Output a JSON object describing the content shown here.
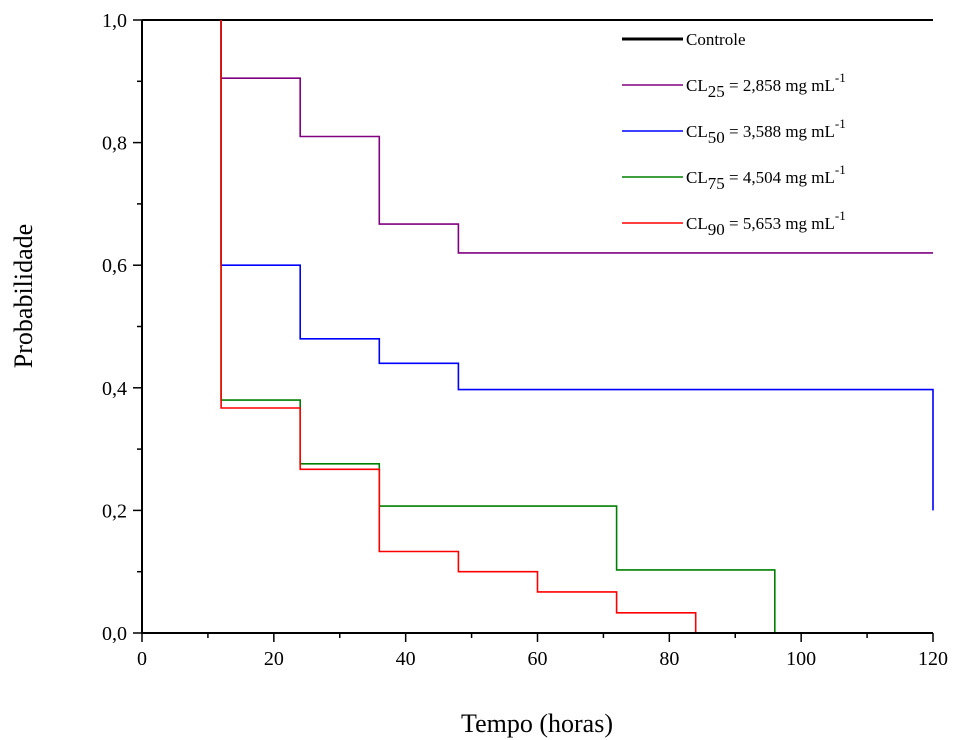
{
  "chart_data": {
    "type": "line",
    "step": true,
    "title": "",
    "xlabel": "Tempo (horas)",
    "ylabel": "Probabilidade",
    "xlim": [
      0,
      120
    ],
    "ylim": [
      0,
      1.0
    ],
    "xticks": [
      0,
      20,
      40,
      60,
      80,
      100,
      120
    ],
    "xtick_labels": [
      "0",
      "20",
      "40",
      "60",
      "80",
      "100",
      "120"
    ],
    "yticks": [
      0,
      0.2,
      0.4,
      0.6,
      0.8,
      1.0
    ],
    "ytick_labels": [
      "0,0",
      "0,2",
      "0,4",
      "0,6",
      "0,8",
      "1,0"
    ],
    "grid": false,
    "legend_position": "top-right",
    "series": [
      {
        "name": "Controle",
        "legend": {
          "main": "Controle",
          "sub": "",
          "rest": "",
          "sup": ""
        },
        "color": "#000000",
        "x": [
          0,
          120
        ],
        "y": [
          1.0,
          1.0
        ]
      },
      {
        "name": "CL25 = 2,858 mg mL-1",
        "legend": {
          "main": "CL",
          "sub": "25",
          "rest": " = 2,858 mg mL",
          "sup": "-1"
        },
        "color": "#800080",
        "x": [
          12,
          12,
          24,
          24,
          36,
          36,
          48,
          48,
          120
        ],
        "y": [
          1.0,
          0.905,
          0.905,
          0.81,
          0.81,
          0.667,
          0.667,
          0.62,
          0.62
        ]
      },
      {
        "name": "CL50 = 3,588 mg mL-1",
        "legend": {
          "main": "CL",
          "sub": "50",
          "rest": " = 3,588 mg mL",
          "sup": "-1"
        },
        "color": "#0000ff",
        "x": [
          12,
          12,
          24,
          24,
          36,
          36,
          48,
          48,
          120,
          120
        ],
        "y": [
          1.0,
          0.6,
          0.6,
          0.48,
          0.48,
          0.44,
          0.44,
          0.397,
          0.397,
          0.2
        ]
      },
      {
        "name": "CL75 = 4,504 mg mL-1",
        "legend": {
          "main": "CL",
          "sub": "75",
          "rest": " = 4,504 mg mL",
          "sup": "-1"
        },
        "color": "#008000",
        "x": [
          12,
          12,
          24,
          24,
          36,
          36,
          72,
          72,
          96,
          96
        ],
        "y": [
          1.0,
          0.38,
          0.38,
          0.276,
          0.276,
          0.207,
          0.207,
          0.103,
          0.103,
          0.0
        ]
      },
      {
        "name": "CL90 = 5,653 mg mL-1",
        "legend": {
          "main": "CL",
          "sub": "90",
          "rest": " = 5,653 mg mL",
          "sup": "-1"
        },
        "color": "#ff0000",
        "x": [
          12,
          12,
          24,
          24,
          36,
          36,
          48,
          48,
          60,
          60,
          72,
          72,
          84,
          84
        ],
        "y": [
          1.0,
          0.367,
          0.367,
          0.267,
          0.267,
          0.133,
          0.133,
          0.1,
          0.1,
          0.067,
          0.067,
          0.033,
          0.033,
          0.0
        ]
      }
    ]
  }
}
